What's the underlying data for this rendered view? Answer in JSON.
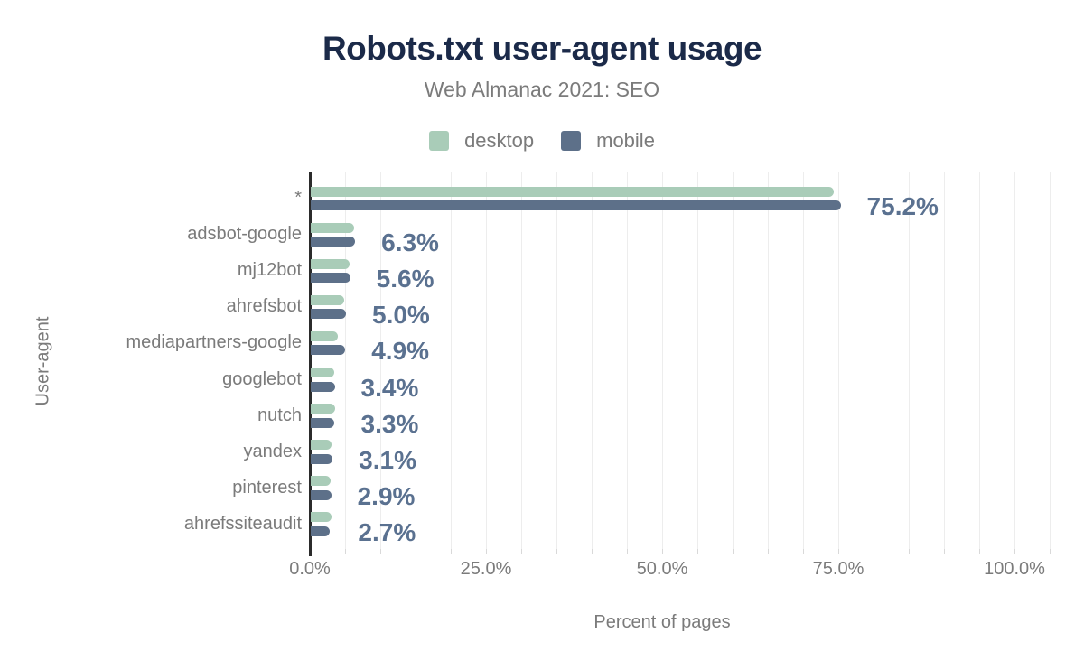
{
  "header": {
    "title": "Robots.txt user-agent usage",
    "subtitle": "Web Almanac 2021: SEO"
  },
  "legend": [
    {
      "label": "desktop",
      "color": "#a9ccb8"
    },
    {
      "label": "mobile",
      "color": "#5d7089"
    }
  ],
  "chart_data": {
    "type": "bar",
    "orientation": "horizontal",
    "title": "Robots.txt user-agent usage",
    "subtitle": "Web Almanac 2021: SEO",
    "xlabel": "Percent of pages",
    "ylabel": "User-agent",
    "categories": [
      "*",
      "adsbot-google",
      "mj12bot",
      "ahrefsbot",
      "mediapartners-google",
      "googlebot",
      "nutch",
      "yandex",
      "pinterest",
      "ahrefssiteaudit"
    ],
    "series": [
      {
        "name": "desktop",
        "color": "#a9ccb8",
        "values": [
          74.2,
          6.1,
          5.5,
          4.8,
          3.9,
          3.3,
          3.4,
          3.0,
          2.8,
          3.0
        ]
      },
      {
        "name": "mobile",
        "color": "#5d7089",
        "values": [
          75.2,
          6.3,
          5.6,
          5.0,
          4.9,
          3.4,
          3.3,
          3.1,
          2.9,
          2.7
        ]
      }
    ],
    "value_labels": [
      "75.2%",
      "6.3%",
      "5.6%",
      "5.0%",
      "4.9%",
      "3.4%",
      "3.3%",
      "3.1%",
      "2.9%",
      "2.7%"
    ],
    "x_ticks": [
      {
        "value": 0,
        "label": "0.0%"
      },
      {
        "value": 25,
        "label": "25.0%"
      },
      {
        "value": 50,
        "label": "50.0%"
      },
      {
        "value": 75,
        "label": "75.0%"
      },
      {
        "value": 100,
        "label": "100.0%"
      }
    ],
    "xlim": [
      0,
      105
    ],
    "grid_step": 5,
    "grid_on": true,
    "legend_position": "top",
    "colors": {
      "title": "#1b2a49",
      "text": "#7b7b7b",
      "value_label": "#5a7190",
      "axis": "#2b2b2b",
      "grid": "#ededed"
    }
  }
}
